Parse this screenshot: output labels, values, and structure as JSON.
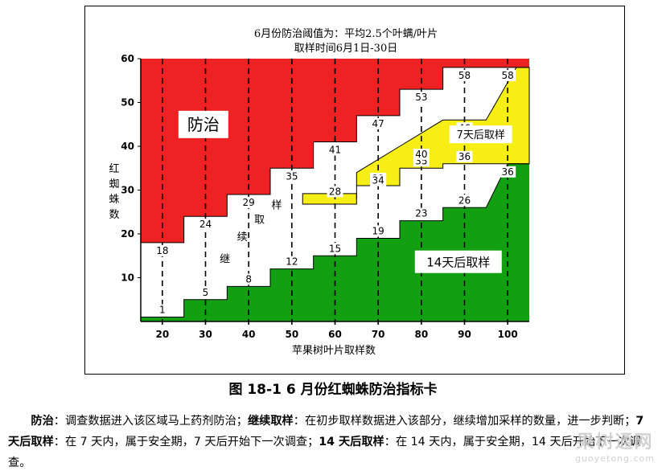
{
  "chart_data": {
    "type": "area",
    "title": "6月份防治阈值为：平均2.5个叶螨/叶片",
    "subtitle": "取样时间6月1日-30日",
    "xlabel": "苹果树叶片取样数",
    "ylabel": "红蜘蛛数",
    "xlim": [
      15,
      105
    ],
    "ylim": [
      0,
      60
    ],
    "x_ticks": [
      20,
      30,
      40,
      50,
      60,
      70,
      80,
      90,
      100
    ],
    "y_ticks": [
      10,
      20,
      30,
      40,
      50,
      60
    ],
    "x_columns": [
      20,
      30,
      40,
      50,
      60,
      70,
      80,
      90,
      100
    ],
    "upper_thresholds": [
      18,
      24,
      29,
      35,
      41,
      47,
      53,
      58,
      58
    ],
    "lower_thresholds": [
      1,
      5,
      8,
      12,
      15,
      19,
      23,
      26,
      36
    ],
    "seven_day_lower": [
      null,
      null,
      null,
      null,
      28,
      31,
      35,
      36,
      36
    ],
    "seven_day_upper": [
      null,
      null,
      null,
      null,
      null,
      34,
      40,
      46,
      58
    ],
    "region_labels": {
      "treat": "防治",
      "continue": "继续取样",
      "seven_day": "7天后取样",
      "fourteen_day": "14天后取样"
    },
    "colors": {
      "treat": "#ee2222",
      "continue": "#ffffff",
      "seven_day": "#f7ee16",
      "fourteen_day": "#12a012"
    },
    "grid": "dashed vertical lines at x ticks",
    "legend": "none"
  },
  "figure": {
    "caption": "图 18-1  6 月份红蜘蛛防治指标卡"
  },
  "description": {
    "t1": "防治",
    "d1": "：调查数据进入该区域马上药剂防治；",
    "t2": "继续取样",
    "d2": "：在初步取样数据进入该部分，继续增加采样的数量，进一步判断；",
    "t3": "7 天后取样",
    "d3": "：在 7 天内，属于安全期，7 天后开始下一次调查；",
    "t4": "14 天后取样",
    "d4": "：在 14 天内，属于安全期，14 天后开始下一次调查。"
  },
  "watermark": {
    "line1": "果树通网",
    "line2": "guoyetong.com"
  }
}
